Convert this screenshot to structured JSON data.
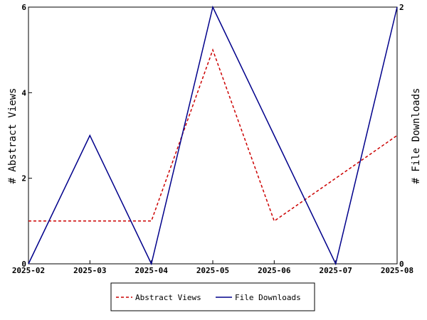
{
  "chart_data": {
    "type": "line",
    "x": [
      "2025-02",
      "2025-03",
      "2025-04",
      "2025-05",
      "2025-06",
      "2025-07",
      "2025-08"
    ],
    "series": [
      {
        "name": "Abstract Views",
        "axis": "left",
        "values": [
          1,
          1,
          1,
          5,
          1,
          2,
          3
        ],
        "color": "#cc0000",
        "style": "dashed"
      },
      {
        "name": "File Downloads",
        "axis": "right",
        "values": [
          0,
          1,
          0,
          2,
          1,
          0,
          2
        ],
        "color": "#00008b",
        "style": "solid"
      }
    ],
    "ylabel_left": "# Abstract Views",
    "ylabel_right": "# File Downloads",
    "ylim_left": [
      0,
      6
    ],
    "ylim_right": [
      0,
      2
    ],
    "yticks_left": [
      "0",
      "2",
      "4",
      "6"
    ],
    "yticks_right": [
      "0",
      "2"
    ],
    "grid": false,
    "legend_position": "bottom-center"
  }
}
